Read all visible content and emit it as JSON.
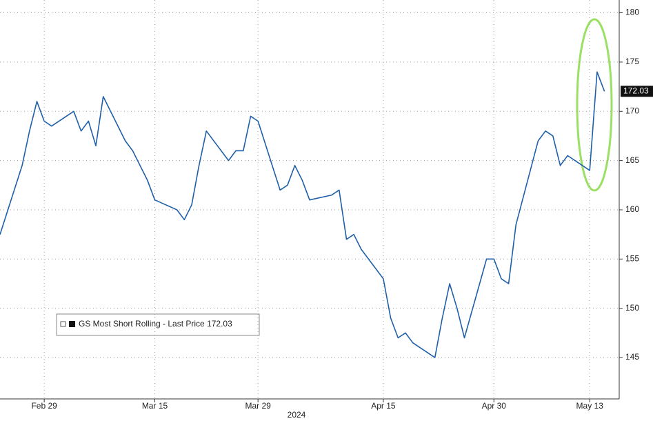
{
  "chart_data": {
    "type": "line",
    "x_label": "2024",
    "x": [
      "2024-02-23",
      "2024-02-26",
      "2024-02-27",
      "2024-02-28",
      "2024-02-29",
      "2024-03-01",
      "2024-03-04",
      "2024-03-05",
      "2024-03-06",
      "2024-03-07",
      "2024-03-08",
      "2024-03-11",
      "2024-03-12",
      "2024-03-13",
      "2024-03-14",
      "2024-03-15",
      "2024-03-18",
      "2024-03-19",
      "2024-03-20",
      "2024-03-21",
      "2024-03-22",
      "2024-03-25",
      "2024-03-26",
      "2024-03-27",
      "2024-03-28",
      "2024-03-29",
      "2024-04-01",
      "2024-04-02",
      "2024-04-03",
      "2024-04-04",
      "2024-04-05",
      "2024-04-08",
      "2024-04-09",
      "2024-04-10",
      "2024-04-11",
      "2024-04-12",
      "2024-04-15",
      "2024-04-16",
      "2024-04-17",
      "2024-04-18",
      "2024-04-19",
      "2024-04-22",
      "2024-04-23",
      "2024-04-24",
      "2024-04-25",
      "2024-04-26",
      "2024-04-29",
      "2024-04-30",
      "2024-05-01",
      "2024-05-02",
      "2024-05-03",
      "2024-05-06",
      "2024-05-07",
      "2024-05-08",
      "2024-05-09",
      "2024-05-10",
      "2024-05-13",
      "2024-05-14",
      "2024-05-15"
    ],
    "series": [
      {
        "name": "GS Most Short Rolling - Last Price 172.03",
        "color": "#1f5fa8",
        "values": [
          157.5,
          164.5,
          168,
          171,
          169,
          168.5,
          170,
          168,
          169,
          166.5,
          171.5,
          167,
          166,
          164.5,
          163,
          161,
          160,
          159,
          160.5,
          164.5,
          168,
          165,
          166,
          166,
          169.5,
          169,
          162,
          162.5,
          164.5,
          163,
          161,
          161.5,
          162,
          157,
          157.5,
          156,
          153,
          149,
          147,
          147.5,
          146.5,
          145,
          149,
          152.5,
          150,
          147,
          155,
          155,
          153,
          152.5,
          158.5,
          167,
          168,
          167.5,
          164.5,
          165.5,
          164,
          174,
          172.03
        ]
      }
    ],
    "last_price_label": 172.03,
    "xlim": [
      "2024-02-23",
      "2024-05-17"
    ],
    "xticks": [
      {
        "value": "2024-02-29",
        "label": "Feb 29"
      },
      {
        "value": "2024-03-15",
        "label": "Mar 15"
      },
      {
        "value": "2024-03-29",
        "label": "Mar 29"
      },
      {
        "value": "2024-04-15",
        "label": "Apr 15"
      },
      {
        "value": "2024-04-30",
        "label": "Apr 30"
      },
      {
        "value": "2024-05-13",
        "label": "May 13"
      }
    ],
    "ylim": [
      140.8,
      181.3
    ],
    "yticks": [
      145,
      150,
      155,
      160,
      165,
      170,
      175,
      180
    ],
    "grid": true
  }
}
